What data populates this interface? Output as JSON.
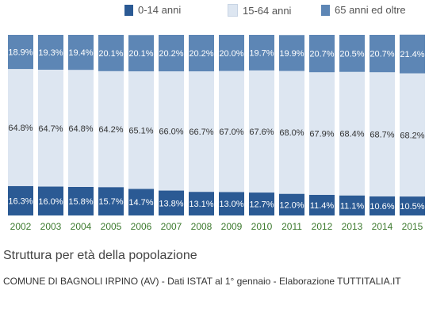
{
  "chart_data": {
    "type": "bar",
    "stacked": true,
    "percent": true,
    "categories": [
      "2002",
      "2003",
      "2004",
      "2005",
      "2006",
      "2007",
      "2008",
      "2009",
      "2010",
      "2011",
      "2012",
      "2013",
      "2014",
      "2015"
    ],
    "series": [
      {
        "name": "0-14 anni",
        "color": "#2b5a94",
        "values": [
          16.3,
          16.0,
          15.8,
          15.7,
          14.7,
          13.8,
          13.1,
          13.0,
          12.7,
          12.0,
          11.4,
          11.1,
          10.6,
          10.5
        ]
      },
      {
        "name": "15-64 anni",
        "color": "#dde6f1",
        "values": [
          64.8,
          64.7,
          64.8,
          64.2,
          65.1,
          66.0,
          66.7,
          67.0,
          67.6,
          68.0,
          67.9,
          68.4,
          68.7,
          68.2
        ]
      },
      {
        "name": "65 anni ed oltre",
        "color": "#5d86b5",
        "values": [
          18.9,
          19.3,
          19.4,
          20.1,
          20.1,
          20.2,
          20.2,
          20.0,
          19.7,
          19.9,
          20.7,
          20.5,
          20.7,
          21.4
        ]
      }
    ],
    "ylim": [
      0,
      100
    ],
    "title": "Struttura per età della popolazione",
    "subtitle": "COMUNE DI BAGNOLI IRPINO (AV) - Dati ISTAT al 1° gennaio - Elaborazione TUTTITALIA.IT",
    "legend_position": "top",
    "category_label_color": "#3d7a2e"
  }
}
